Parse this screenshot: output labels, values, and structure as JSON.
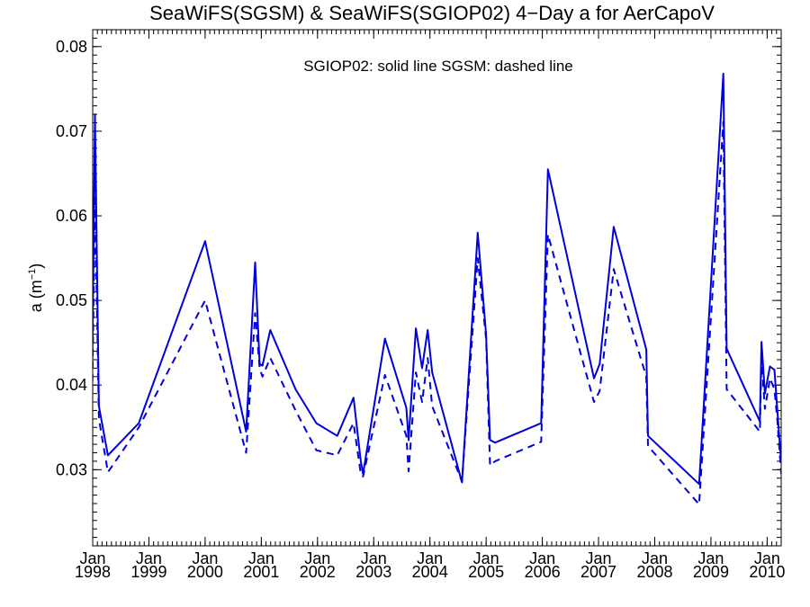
{
  "chart_data": {
    "type": "line",
    "title": "SeaWiFS(SGSM) & SeaWiFS(SGIOP02) 4−Day a for AerCapoV",
    "annotation": "SGIOP02: solid line   SGSM: dashed line",
    "ylabel_main": "a (m",
    "ylabel_sup": "−1",
    "ylabel_close": ")",
    "xlim": [
      1998.0,
      2010.25
    ],
    "ylim": [
      0.021,
      0.082
    ],
    "yticks": [
      0.03,
      0.04,
      0.05,
      0.06,
      0.07,
      0.08
    ],
    "ytick_labels": [
      "0.03",
      "0.04",
      "0.05",
      "0.06",
      "0.07",
      "0.08"
    ],
    "xticks": [
      1998,
      1999,
      2000,
      2001,
      2002,
      2003,
      2004,
      2005,
      2006,
      2007,
      2008,
      2009,
      2010
    ],
    "xtick_month_labels": [
      "Jan",
      "Jan",
      "Jan",
      "Jan",
      "Jan",
      "Jan",
      "Jan",
      "Jan",
      "Jan",
      "Jan",
      "Jan",
      "Jan",
      "Jan"
    ],
    "xtick_year_labels": [
      "1998",
      "1999",
      "2000",
      "2001",
      "2002",
      "2003",
      "2004",
      "2005",
      "2006",
      "2007",
      "2008",
      "2009",
      "2010"
    ],
    "series": [
      {
        "style": "solid",
        "color": "#0000dd",
        "x": [
          1997.98,
          1998.04,
          1998.11,
          1998.27,
          1998.82,
          2000.0,
          2000.73,
          2000.89,
          2000.97,
          2001.02,
          2001.16,
          2001.61,
          2001.98,
          2002.35,
          2002.64,
          2002.77,
          2002.81,
          2003.2,
          2003.58,
          2003.62,
          2003.75,
          2003.86,
          2003.96,
          2004.04,
          2004.57,
          2004.85,
          2005.0,
          2005.07,
          2005.16,
          2005.98,
          2006.1,
          2006.92,
          2007.02,
          2007.27,
          2007.85,
          2007.88,
          2008.79,
          2009.22,
          2009.28,
          2009.87,
          2009.9,
          2009.96,
          2010.05,
          2010.13,
          2010.18,
          2010.25
        ],
        "y": [
          0.0345,
          0.072,
          0.0375,
          0.0317,
          0.0355,
          0.057,
          0.0345,
          0.0545,
          0.0425,
          0.0423,
          0.0465,
          0.0395,
          0.0355,
          0.034,
          0.0385,
          0.031,
          0.0295,
          0.0455,
          0.0373,
          0.0335,
          0.0467,
          0.042,
          0.0465,
          0.0415,
          0.0285,
          0.058,
          0.046,
          0.0335,
          0.0332,
          0.0355,
          0.0655,
          0.0408,
          0.0425,
          0.0587,
          0.0442,
          0.034,
          0.0283,
          0.0768,
          0.0443,
          0.0357,
          0.0451,
          0.039,
          0.0422,
          0.0418,
          0.0372,
          0.0308
        ]
      },
      {
        "style": "dashed",
        "color": "#0000dd",
        "x": [
          1997.98,
          1998.04,
          1998.11,
          1998.27,
          1998.82,
          2000.0,
          2000.73,
          2000.89,
          2000.97,
          2001.02,
          2001.16,
          2001.61,
          2001.98,
          2002.35,
          2002.64,
          2002.77,
          2002.81,
          2003.2,
          2003.58,
          2003.62,
          2003.75,
          2003.86,
          2003.96,
          2004.04,
          2004.57,
          2004.85,
          2005.0,
          2005.07,
          2005.16,
          2005.98,
          2006.1,
          2006.92,
          2007.02,
          2007.27,
          2007.85,
          2007.88,
          2008.79,
          2009.22,
          2009.28,
          2009.87,
          2009.9,
          2009.96,
          2010.05,
          2010.13,
          2010.18,
          2010.25
        ],
        "y": [
          0.033,
          0.0625,
          0.036,
          0.0297,
          0.035,
          0.05,
          0.032,
          0.0485,
          0.042,
          0.041,
          0.0432,
          0.037,
          0.0323,
          0.0317,
          0.0355,
          0.0295,
          0.0292,
          0.0412,
          0.034,
          0.0298,
          0.0415,
          0.038,
          0.0432,
          0.0375,
          0.0286,
          0.055,
          0.0455,
          0.0305,
          0.031,
          0.0333,
          0.0578,
          0.038,
          0.0393,
          0.0537,
          0.041,
          0.0328,
          0.0259,
          0.0711,
          0.0395,
          0.0345,
          0.043,
          0.0372,
          0.0408,
          0.0395,
          0.036,
          0.0295
        ]
      }
    ]
  }
}
